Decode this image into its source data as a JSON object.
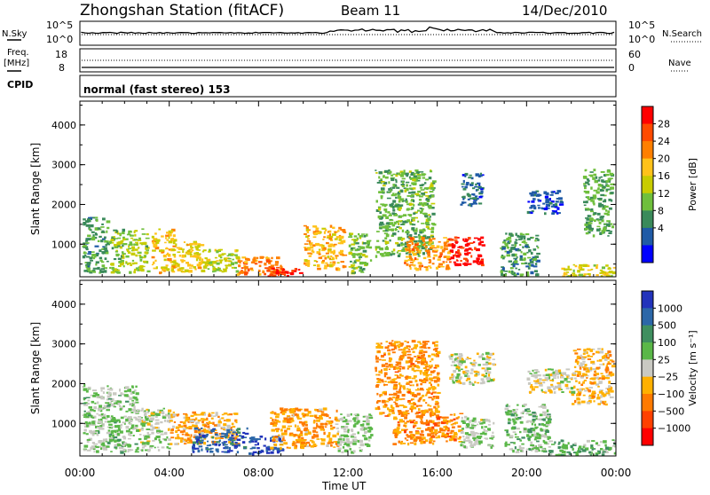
{
  "header": {
    "title": "Zhongshan Station (fitACF)",
    "beam": "Beam 11",
    "date": "14/Dec/2010"
  },
  "top_panels": {
    "nsky_label": "N.Sky",
    "nsearch_label": "N.Search",
    "noise_ticks": [
      "10^5",
      "10^0"
    ],
    "freq_label": "Freq.",
    "freq_unit": "[MHz]",
    "freq_ticks": [
      "18",
      "8"
    ],
    "nave_label": "Nave",
    "nave_ticks": [
      "60",
      "0"
    ],
    "cpid_label": "CPID",
    "cpid_text": "normal (fast stereo) 153"
  },
  "axes": {
    "xlabel": "Time UT",
    "x_ticks": [
      "00:00",
      "04:00",
      "08:00",
      "12:00",
      "16:00",
      "20:00",
      "00:00"
    ],
    "ylabel": "Slant Range [km]",
    "y_ticks": [
      "4000",
      "3000",
      "2000",
      "1000"
    ]
  },
  "power_colorbar": {
    "label": "Power [dB]",
    "ticks": [
      "28",
      "24",
      "20",
      "16",
      "12",
      "8",
      "4"
    ],
    "colors": [
      "#ff0000",
      "#ff4a00",
      "#ff7f00",
      "#ffc21a",
      "#c8cc00",
      "#6fbf3c",
      "#3a8a5a",
      "#1f5aa6",
      "#0000ff"
    ]
  },
  "velocity_colorbar": {
    "label": "Velocity [m s⁻¹]",
    "ticks": [
      "1000",
      "500",
      "100",
      "25",
      "−25",
      "−100",
      "−500",
      "−1000"
    ],
    "colors": [
      "#2233bb",
      "#2c67a8",
      "#3f8f5f",
      "#5ab748",
      "#c9c9c2",
      "#ffb000",
      "#ff7a00",
      "#ff4000",
      "#ff0000"
    ]
  },
  "chart_data": [
    {
      "type": "heatmap",
      "title": "Power",
      "xlabel": "Time UT",
      "ylabel": "Slant Range [km]",
      "xlim": [
        0,
        24
      ],
      "ylim": [
        180,
        4600
      ],
      "zlabel": "Power [dB]",
      "zlim": [
        0,
        30
      ],
      "regions": [
        {
          "t": [
            0.1,
            1.2
          ],
          "r": [
            300,
            1700
          ],
          "z": 9
        },
        {
          "t": [
            1.3,
            3.0
          ],
          "r": [
            300,
            1400
          ],
          "z": 13
        },
        {
          "t": [
            3.2,
            4.2
          ],
          "r": [
            300,
            1400
          ],
          "z": 18
        },
        {
          "t": [
            4.2,
            5.5
          ],
          "r": [
            300,
            1100
          ],
          "z": 17
        },
        {
          "t": [
            5.5,
            7.0
          ],
          "r": [
            300,
            900
          ],
          "z": 14
        },
        {
          "t": [
            7.0,
            9.0
          ],
          "r": [
            250,
            700
          ],
          "z": 22
        },
        {
          "t": [
            8.2,
            10.0
          ],
          "r": [
            180,
            450
          ],
          "z": 27
        },
        {
          "t": [
            10.0,
            11.8
          ],
          "r": [
            400,
            1500
          ],
          "z": 19
        },
        {
          "t": [
            12.0,
            13.0
          ],
          "r": [
            300,
            1300
          ],
          "z": 12
        },
        {
          "t": [
            13.2,
            15.8
          ],
          "r": [
            700,
            2900
          ],
          "z": 11
        },
        {
          "t": [
            14.5,
            16.5
          ],
          "r": [
            400,
            1200
          ],
          "z": 21
        },
        {
          "t": [
            16.5,
            18.0
          ],
          "r": [
            500,
            1200
          ],
          "z": 28
        },
        {
          "t": [
            17.0,
            18.0
          ],
          "r": [
            2000,
            2800
          ],
          "z": 6
        },
        {
          "t": [
            18.8,
            20.5
          ],
          "r": [
            200,
            1300
          ],
          "z": 9
        },
        {
          "t": [
            20.0,
            21.5
          ],
          "r": [
            1800,
            2400
          ],
          "z": 5
        },
        {
          "t": [
            21.5,
            24.0
          ],
          "r": [
            200,
            500
          ],
          "z": 16
        },
        {
          "t": [
            22.5,
            23.8
          ],
          "r": [
            1200,
            2900
          ],
          "z": 10
        }
      ]
    },
    {
      "type": "heatmap",
      "title": "Velocity",
      "xlabel": "Time UT",
      "ylabel": "Slant Range [km]",
      "xlim": [
        0,
        24
      ],
      "ylim": [
        180,
        4600
      ],
      "zlabel": "Velocity [m s⁻¹]",
      "zlim": [
        -1000,
        1000
      ],
      "regions": [
        {
          "t": [
            0.1,
            2.5
          ],
          "r": [
            300,
            2000
          ],
          "z": 150
        },
        {
          "t": [
            2.5,
            4.0
          ],
          "r": [
            300,
            1400
          ],
          "z": 60
        },
        {
          "t": [
            4.0,
            7.0
          ],
          "r": [
            500,
            1300
          ],
          "z": -250
        },
        {
          "t": [
            5.0,
            7.5
          ],
          "r": [
            300,
            900
          ],
          "z": 700
        },
        {
          "t": [
            7.5,
            9.0
          ],
          "r": [
            250,
            700
          ],
          "z": 800
        },
        {
          "t": [
            8.5,
            11.5
          ],
          "r": [
            400,
            1400
          ],
          "z": -300
        },
        {
          "t": [
            11.5,
            13.0
          ],
          "r": [
            300,
            1300
          ],
          "z": 120
        },
        {
          "t": [
            13.2,
            16.0
          ],
          "r": [
            1200,
            3100
          ],
          "z": -350
        },
        {
          "t": [
            14.0,
            17.0
          ],
          "r": [
            500,
            1300
          ],
          "z": -400
        },
        {
          "t": [
            16.5,
            18.5
          ],
          "r": [
            2000,
            2800
          ],
          "z": 0
        },
        {
          "t": [
            17.0,
            18.5
          ],
          "r": [
            400,
            1200
          ],
          "z": 80
        },
        {
          "t": [
            19.0,
            21.0
          ],
          "r": [
            300,
            1500
          ],
          "z": 200
        },
        {
          "t": [
            20.0,
            22.0
          ],
          "r": [
            1800,
            2400
          ],
          "z": 0
        },
        {
          "t": [
            22.0,
            23.8
          ],
          "r": [
            1500,
            2900
          ],
          "z": -200
        },
        {
          "t": [
            21.0,
            24.0
          ],
          "r": [
            200,
            600
          ],
          "z": 250
        }
      ]
    }
  ]
}
